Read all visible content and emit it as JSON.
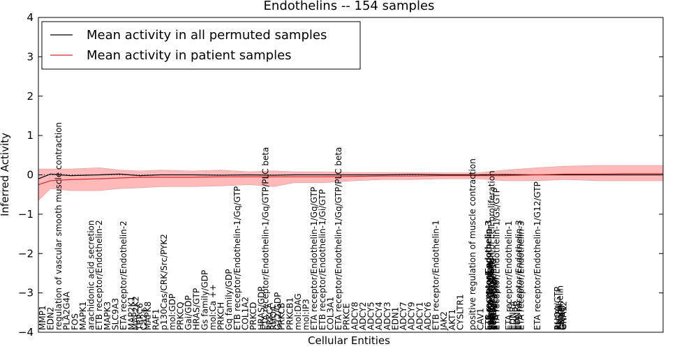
{
  "chart_data": {
    "type": "line",
    "title": "Endothelins -- 154 samples",
    "xlabel": "Cellular Entities",
    "ylabel": "Inferred Activity",
    "ylim": [
      -4,
      4
    ],
    "yticks": [
      -4,
      -3,
      -2,
      -1,
      0,
      1,
      2,
      3,
      4
    ],
    "xlim": [
      0,
      154
    ],
    "grid": false,
    "legend_position": "top-left",
    "reference_line": {
      "y": 0,
      "style": "dotted"
    },
    "categories": [
      "MMP1",
      "EDN2",
      "regulation of vascular smooth muscle contraction",
      "PLA2G4A",
      "FOS",
      "MAPK1",
      "arachidonic acid secretion",
      "ETB receptor/Endothelin-2",
      "MAPK3",
      "SLC9A3",
      "ETA receptor/Endothelin-2",
      "MAP2K1",
      "MAP2K2",
      "TRPC6",
      "Ca2+",
      "MAPK8",
      "RAF1",
      "p130Cas/CRK/Src/PYK2",
      "mol:GDP",
      "PRKCQ",
      "Gai/GDP",
      "HRAS/GTP",
      "Gs family/GDP",
      "mol:Ca ++",
      "PRKCH",
      "Gq family/GDP",
      "ETB receptor/Endothelin-1/Gq/GTP",
      "COL1A2",
      "PRKCD",
      "HRAS/GDP",
      "ETA receptor/Endothelin-1/Gq/GTP/PLC beta",
      "PRKCA",
      "RHOA",
      "G12/GDP",
      "PRKCB",
      "PRKCB1",
      "mol:DAG",
      "mol:IP3",
      "ETA receptor/Endothelin-1/Gq/GTP",
      "ETB receptor/Endothelin-1/Gi/GTP",
      "COL3A1",
      "ETA receptor/Endothelin-1/Gq/GTP/PLC beta",
      "PRKCE",
      "ADCY8",
      "ADCY2",
      "ADCY5",
      "ADCY4",
      "ADCY3",
      "EDN1",
      "ADCY7",
      "ADCY9",
      "ADCY1",
      "ADCY6",
      "ETB receptor/Endothelin-1",
      "JAK2",
      "AKT1",
      "CYSLTR1",
      "positive regulation of muscle contraction",
      "CAV1",
      "ETB receptor/Endothelin-3",
      "ETA receptor/Endothelin-3",
      "cell proliferation",
      "muscle contraction",
      "vasoconstriction",
      "positive regulation of cell proliferation",
      "EDN3",
      "cellular response",
      "ETA receptor",
      "ETB receptor",
      "ETA receptor/Endothelin-1/Gs/GTP",
      "ETA receptor/Endothelin-1",
      "EDNRA",
      "EDNRB",
      "ETB receptor/Endothelin-3",
      "ETA receptor/Endothelin-3",
      "ETA receptor/Endothelin-1/G12/GTP",
      "RHOA/GTP",
      "PLCB1",
      "Endothelin",
      "EDN2",
      "GNAQ",
      "GNA12"
    ],
    "label_positions": [
      1,
      3,
      5,
      7,
      9,
      11,
      13,
      15,
      17,
      19,
      21,
      23,
      24,
      25,
      26,
      27,
      29,
      31,
      33,
      35,
      37,
      39,
      41,
      43,
      45,
      47,
      49,
      51,
      53,
      55,
      56,
      57,
      58,
      59,
      60,
      62,
      64,
      66,
      68,
      70,
      72,
      74,
      76,
      78,
      80,
      82,
      84,
      86,
      88,
      90,
      92,
      94,
      96,
      98,
      100,
      102,
      104,
      107,
      109,
      111,
      111,
      111.2,
      111.4,
      111.6,
      111.8,
      112,
      112.2,
      112.4,
      112.6,
      113,
      116,
      117,
      118,
      118.5,
      119,
      123,
      128,
      128.3,
      128.6,
      128.9,
      129.2,
      129.5
    ],
    "series": [
      {
        "name": "Mean activity in all permuted samples",
        "color": "#000000",
        "x": [
          0,
          3,
          8,
          15,
          20,
          25,
          30,
          38,
          45,
          52,
          58,
          63,
          70,
          78,
          85,
          92,
          100,
          108,
          115,
          123,
          130,
          138,
          145,
          154
        ],
        "values": [
          -0.1,
          0.02,
          -0.02,
          0.0,
          0.02,
          -0.02,
          0.0,
          0.0,
          -0.01,
          0.0,
          -0.01,
          0.0,
          0.0,
          0.0,
          0.0,
          0.01,
          0.0,
          0.0,
          0.01,
          0.0,
          0.0,
          0.0,
          0.0,
          0.0
        ]
      },
      {
        "name": "Mean activity in patient samples",
        "color": "#d62728",
        "x": [
          0,
          3,
          8,
          15,
          20,
          25,
          30,
          38,
          45,
          52,
          58,
          63,
          70,
          78,
          85,
          92,
          100,
          108,
          115,
          123,
          130,
          138,
          145,
          154
        ],
        "values": [
          -0.25,
          -0.15,
          -0.12,
          -0.1,
          -0.08,
          -0.06,
          -0.06,
          -0.06,
          -0.05,
          -0.05,
          -0.05,
          -0.05,
          -0.05,
          -0.04,
          -0.03,
          -0.03,
          -0.02,
          -0.02,
          -0.02,
          0.0,
          0.02,
          0.02,
          0.03,
          0.03
        ],
        "band_upper": [
          0.15,
          0.15,
          0.15,
          0.18,
          0.12,
          0.1,
          0.12,
          0.1,
          0.12,
          0.08,
          0.1,
          0.08,
          0.08,
          0.06,
          0.06,
          0.06,
          0.05,
          0.05,
          0.12,
          0.18,
          0.22,
          0.24,
          0.24,
          0.24
        ],
        "band_lower": [
          -0.65,
          -0.35,
          -0.4,
          -0.4,
          -0.35,
          -0.33,
          -0.3,
          -0.3,
          -0.28,
          -0.25,
          -0.3,
          -0.2,
          -0.2,
          -0.15,
          -0.12,
          -0.12,
          -0.1,
          -0.1,
          -0.15,
          -0.15,
          -0.12,
          -0.15,
          -0.15,
          -0.15
        ]
      }
    ]
  }
}
